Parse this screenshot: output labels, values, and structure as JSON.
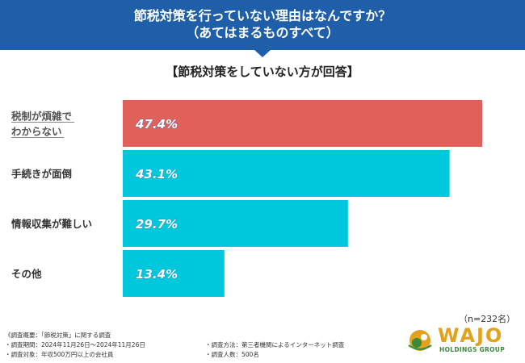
{
  "header": {
    "line1": "節税対策を行っていない理由はなんですか？",
    "line2": "（あてはまるものすべて）"
  },
  "subtitle": "【節税対策をしていない方が回答】",
  "colors": {
    "header_bg": "#1f5ea8",
    "highlight_bar": "#e0605a",
    "bar": "#00c8dc"
  },
  "chart_data": {
    "type": "bar",
    "orientation": "horizontal",
    "categories": [
      [
        "税制が煩雑で",
        "わからない"
      ],
      [
        "手続きが面倒"
      ],
      [
        "情報収集が難しい"
      ],
      [
        "その他"
      ]
    ],
    "values": [
      47.4,
      43.1,
      29.7,
      13.4
    ],
    "value_labels": [
      "47.4%",
      "43.1%",
      "29.7%",
      "13.4%"
    ],
    "highlight_index": 0,
    "xlim": [
      0,
      50
    ],
    "unit": "%"
  },
  "n_note": "（n=232名）",
  "footer": {
    "line1": "《調査概要：「節税対策」に関する調査",
    "line2": "・調査期間：2024年11月26日〜2024年11月26日",
    "line3": "・調査対象：年収500万円以上の会社員",
    "line4": "・調査方法：第三者機関によるインターネット調査",
    "line5": "・調査人数：500名"
  },
  "logo": {
    "name": "WAJO",
    "sub": "HOLDINGS GROUP",
    "icon": "wajo-logo-icon"
  }
}
